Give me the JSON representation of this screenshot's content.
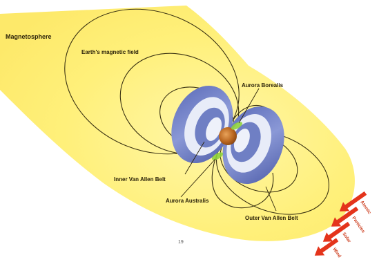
{
  "labels": {
    "magnetosphere": "Magnetosphere",
    "magnetic_field": "Earth's magnetic field",
    "aurora_borealis": "Aurora Borealis",
    "inner_belt": "Inner Van Allen Belt",
    "aurora_australis": "Aurora Australis",
    "outer_belt": "Outer Van Allen Belt",
    "page_number": "19"
  },
  "solar_wind": {
    "labels": [
      "Atomic",
      "Particles",
      "Solar",
      "Wind"
    ]
  },
  "colors": {
    "magnetosphere": "#fff27a",
    "belt_outer": "#6f7fc4",
    "belt_inner": "#e8ecf8",
    "field_lines": "#3a3212",
    "aurora": "#8fd33c",
    "earth": "#c4792a",
    "arrows": "#e4341b"
  }
}
